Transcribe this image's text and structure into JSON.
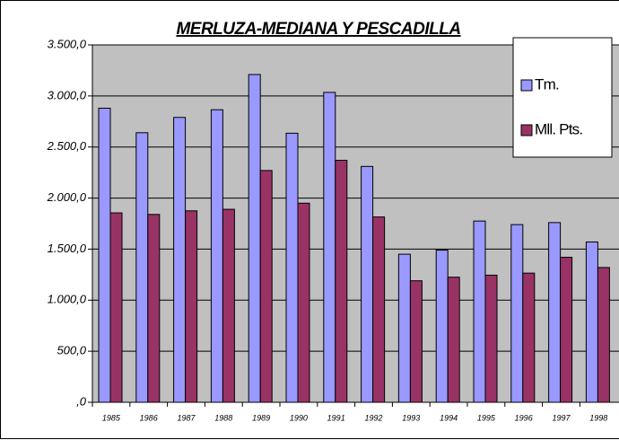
{
  "chart_data": {
    "type": "bar",
    "title": "MERLUZA-MEDIANA Y PESCADILLA",
    "categories": [
      "1985",
      "1986",
      "1987",
      "1988",
      "1989",
      "1990",
      "1991",
      "1992",
      "1993",
      "1994",
      "1995",
      "1996",
      "1997",
      "1998"
    ],
    "series": [
      {
        "name": "Tm.",
        "color": "#9999ff",
        "values": [
          2880,
          2640,
          2790,
          2865,
          3210,
          2635,
          3035,
          2310,
          1450,
          1490,
          1775,
          1740,
          1760,
          1570
        ]
      },
      {
        "name": "Mll. Pts.",
        "color": "#993366",
        "values": [
          1855,
          1840,
          1875,
          1890,
          2270,
          1950,
          2370,
          1815,
          1190,
          1225,
          1245,
          1265,
          1420,
          1320
        ]
      }
    ],
    "ylim": [
      0,
      3500
    ],
    "yticks": [
      {
        "value": 0,
        "label": ",0"
      },
      {
        "value": 500,
        "label": "500,0"
      },
      {
        "value": 1000,
        "label": "1.000,0"
      },
      {
        "value": 1500,
        "label": "1.500,0"
      },
      {
        "value": 2000,
        "label": "2.000,0"
      },
      {
        "value": 2500,
        "label": "2.500,0"
      },
      {
        "value": 3000,
        "label": "3.000,0"
      },
      {
        "value": 3500,
        "label": "3.500,0"
      }
    ],
    "grid": true,
    "legend": "top-right"
  }
}
